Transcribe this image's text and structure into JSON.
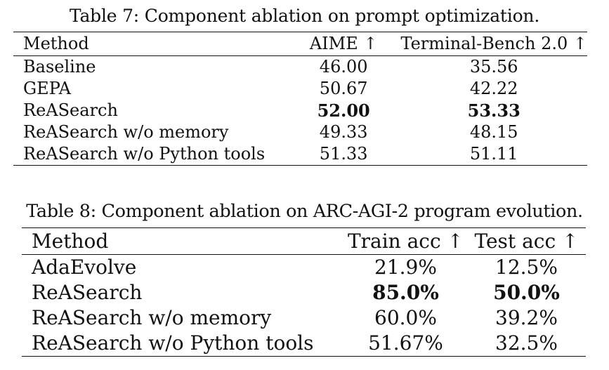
{
  "table7": {
    "caption": "Table 7: Component ablation on prompt optimization.",
    "headers": [
      "Method",
      "AIME ↑",
      "Terminal-Bench 2.0 ↑"
    ],
    "rows": [
      {
        "method": "Baseline",
        "aime": "46.00",
        "terminal": "35.56"
      },
      {
        "method": "GEPA",
        "aime": "50.67",
        "terminal": "42.22"
      },
      {
        "method": "ReASearch",
        "aime": "52.00",
        "terminal": "53.33"
      },
      {
        "method": "ReASearch w/o memory",
        "aime": "49.33",
        "terminal": "48.15"
      },
      {
        "method": "ReASearch w/o Python tools",
        "aime": "51.33",
        "terminal": "51.11"
      }
    ]
  },
  "table8": {
    "caption": "Table 8: Component ablation on ARC-AGI-2 program evolution.",
    "headers": [
      "Method",
      "Train acc ↑",
      "Test acc ↑"
    ],
    "rows": [
      {
        "method": "AdaEvolve",
        "train": "21.9%",
        "test": "12.5%"
      },
      {
        "method": "ReASearch",
        "train": "85.0%",
        "test": "50.0%"
      },
      {
        "method": "ReASearch w/o memory",
        "train": "60.0%",
        "test": "39.2%"
      },
      {
        "method": "ReASearch w/o Python tools",
        "train": "51.67%",
        "test": "32.5%"
      }
    ]
  }
}
